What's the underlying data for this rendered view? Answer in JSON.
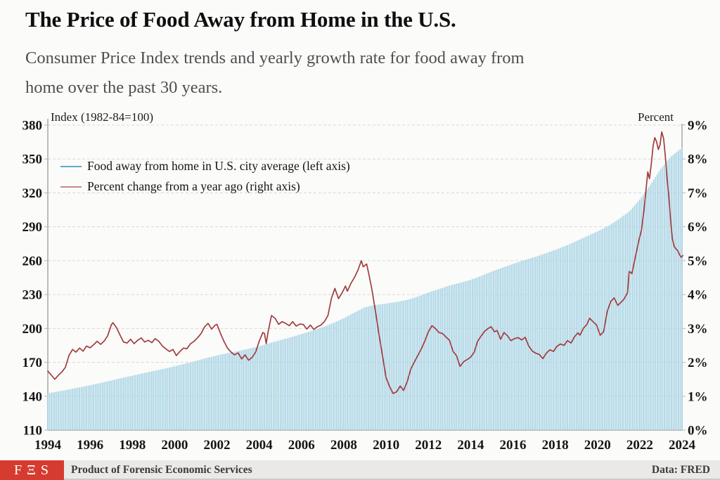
{
  "header": {
    "title": "The Price of Food Away from Home in the U.S.",
    "subtitle_line1": "Consumer Price Index trends and yearly growth rate for food away from",
    "subtitle_line2": "home over the past 30 years."
  },
  "chart_data": {
    "type": "combo",
    "grid": "dashed horizontal gridlines at every tick",
    "legend_position": "top-left inside plot",
    "x_axis": {
      "min": 1994,
      "max": 2024,
      "tick_step": 2,
      "ticks": [
        1994,
        1996,
        1998,
        2000,
        2002,
        2004,
        2006,
        2008,
        2010,
        2012,
        2014,
        2016,
        2018,
        2020,
        2022,
        2024
      ]
    },
    "left_axis": {
      "label": "Index (1982-84=100)",
      "min": 110,
      "max": 380,
      "tick_step": 30,
      "ticks": [
        110,
        140,
        170,
        200,
        230,
        260,
        290,
        320,
        350,
        380
      ]
    },
    "right_axis": {
      "label": "Percent",
      "min": 0,
      "max": 9,
      "tick_step": 1,
      "ticks": [
        "0%",
        "1%",
        "2%",
        "3%",
        "4%",
        "5%",
        "6%",
        "7%",
        "8%",
        "9%"
      ]
    },
    "series": [
      {
        "name": "Food away from home in U.S. city average (left axis)",
        "type": "bar",
        "axis": "left",
        "frequency": "monthly",
        "color": "#a9d4e5",
        "legend_color": "#63a8c8",
        "points": [
          [
            1994.0,
            142.6
          ],
          [
            1994.5,
            144.2
          ],
          [
            1995.0,
            146.0
          ],
          [
            1995.5,
            147.9
          ],
          [
            1996.0,
            149.7
          ],
          [
            1996.5,
            151.8
          ],
          [
            1997.0,
            153.9
          ],
          [
            1997.5,
            156.1
          ],
          [
            1998.0,
            158.2
          ],
          [
            1998.5,
            160.3
          ],
          [
            1999.0,
            162.3
          ],
          [
            1999.5,
            164.3
          ],
          [
            2000.0,
            166.5
          ],
          [
            2000.5,
            168.8
          ],
          [
            2001.0,
            171.2
          ],
          [
            2001.5,
            173.8
          ],
          [
            2002.0,
            176.1
          ],
          [
            2002.5,
            178.1
          ],
          [
            2003.0,
            180.0
          ],
          [
            2003.5,
            182.0
          ],
          [
            2004.0,
            184.2
          ],
          [
            2004.5,
            187.0
          ],
          [
            2005.0,
            189.6
          ],
          [
            2005.5,
            192.2
          ],
          [
            2006.0,
            195.0
          ],
          [
            2006.5,
            197.9
          ],
          [
            2007.0,
            201.1
          ],
          [
            2007.5,
            204.8
          ],
          [
            2008.0,
            209.0
          ],
          [
            2008.5,
            214.0
          ],
          [
            2009.0,
            218.8
          ],
          [
            2009.5,
            220.8
          ],
          [
            2010.0,
            222.0
          ],
          [
            2010.5,
            223.4
          ],
          [
            2011.0,
            225.2
          ],
          [
            2011.5,
            228.2
          ],
          [
            2012.0,
            231.7
          ],
          [
            2012.5,
            234.9
          ],
          [
            2013.0,
            238.0
          ],
          [
            2013.5,
            240.4
          ],
          [
            2014.0,
            243.0
          ],
          [
            2014.5,
            246.5
          ],
          [
            2015.0,
            250.4
          ],
          [
            2015.5,
            253.8
          ],
          [
            2016.0,
            257.1
          ],
          [
            2016.5,
            260.2
          ],
          [
            2017.0,
            263.0
          ],
          [
            2017.5,
            266.2
          ],
          [
            2018.0,
            269.5
          ],
          [
            2018.5,
            273.2
          ],
          [
            2019.0,
            277.3
          ],
          [
            2019.5,
            281.6
          ],
          [
            2020.0,
            285.9
          ],
          [
            2020.5,
            290.5
          ],
          [
            2021.0,
            296.6
          ],
          [
            2021.5,
            303.5
          ],
          [
            2022.0,
            314.1
          ],
          [
            2022.5,
            327.0
          ],
          [
            2023.0,
            341.4
          ],
          [
            2023.5,
            352.5
          ],
          [
            2024.0,
            360.0
          ],
          [
            2024.04,
            360.5
          ]
        ]
      },
      {
        "name": "Percent change from a year ago (right axis)",
        "type": "line",
        "axis": "right",
        "frequency": "monthly",
        "color": "#a23c3e",
        "legend_color": "#c58b8b",
        "points": [
          [
            1994.0,
            1.74
          ],
          [
            1994.17,
            1.62
          ],
          [
            1994.33,
            1.5
          ],
          [
            1994.5,
            1.62
          ],
          [
            1994.67,
            1.72
          ],
          [
            1994.83,
            1.85
          ],
          [
            1995.0,
            2.2
          ],
          [
            1995.17,
            2.38
          ],
          [
            1995.33,
            2.3
          ],
          [
            1995.5,
            2.42
          ],
          [
            1995.67,
            2.33
          ],
          [
            1995.83,
            2.48
          ],
          [
            1996.0,
            2.43
          ],
          [
            1996.17,
            2.52
          ],
          [
            1996.33,
            2.62
          ],
          [
            1996.5,
            2.53
          ],
          [
            1996.67,
            2.63
          ],
          [
            1996.83,
            2.78
          ],
          [
            1997.0,
            3.1
          ],
          [
            1997.08,
            3.17
          ],
          [
            1997.25,
            3.02
          ],
          [
            1997.42,
            2.8
          ],
          [
            1997.58,
            2.6
          ],
          [
            1997.75,
            2.57
          ],
          [
            1997.92,
            2.68
          ],
          [
            1998.08,
            2.55
          ],
          [
            1998.25,
            2.65
          ],
          [
            1998.42,
            2.72
          ],
          [
            1998.58,
            2.6
          ],
          [
            1998.75,
            2.65
          ],
          [
            1998.92,
            2.58
          ],
          [
            1999.08,
            2.7
          ],
          [
            1999.25,
            2.62
          ],
          [
            1999.42,
            2.48
          ],
          [
            1999.58,
            2.4
          ],
          [
            1999.75,
            2.32
          ],
          [
            1999.92,
            2.38
          ],
          [
            2000.08,
            2.2
          ],
          [
            2000.25,
            2.32
          ],
          [
            2000.42,
            2.42
          ],
          [
            2000.58,
            2.4
          ],
          [
            2000.75,
            2.55
          ],
          [
            2000.92,
            2.62
          ],
          [
            2001.08,
            2.72
          ],
          [
            2001.25,
            2.85
          ],
          [
            2001.42,
            3.05
          ],
          [
            2001.58,
            3.15
          ],
          [
            2001.75,
            2.98
          ],
          [
            2001.92,
            3.1
          ],
          [
            2002.0,
            3.12
          ],
          [
            2002.17,
            2.85
          ],
          [
            2002.33,
            2.62
          ],
          [
            2002.5,
            2.42
          ],
          [
            2002.67,
            2.3
          ],
          [
            2002.83,
            2.22
          ],
          [
            2003.0,
            2.28
          ],
          [
            2003.17,
            2.1
          ],
          [
            2003.33,
            2.22
          ],
          [
            2003.5,
            2.06
          ],
          [
            2003.67,
            2.15
          ],
          [
            2003.83,
            2.3
          ],
          [
            2004.0,
            2.62
          ],
          [
            2004.17,
            2.88
          ],
          [
            2004.25,
            2.85
          ],
          [
            2004.33,
            2.55
          ],
          [
            2004.42,
            2.9
          ],
          [
            2004.58,
            3.38
          ],
          [
            2004.75,
            3.3
          ],
          [
            2004.92,
            3.12
          ],
          [
            2005.08,
            3.2
          ],
          [
            2005.25,
            3.15
          ],
          [
            2005.42,
            3.08
          ],
          [
            2005.58,
            3.2
          ],
          [
            2005.75,
            3.07
          ],
          [
            2005.92,
            3.13
          ],
          [
            2006.08,
            3.12
          ],
          [
            2006.25,
            2.98
          ],
          [
            2006.42,
            3.1
          ],
          [
            2006.58,
            2.97
          ],
          [
            2006.75,
            3.05
          ],
          [
            2006.92,
            3.1
          ],
          [
            2007.08,
            3.2
          ],
          [
            2007.25,
            3.38
          ],
          [
            2007.42,
            3.9
          ],
          [
            2007.58,
            4.18
          ],
          [
            2007.75,
            3.88
          ],
          [
            2007.92,
            4.05
          ],
          [
            2008.08,
            4.25
          ],
          [
            2008.17,
            4.1
          ],
          [
            2008.33,
            4.32
          ],
          [
            2008.5,
            4.5
          ],
          [
            2008.67,
            4.72
          ],
          [
            2008.83,
            5.0
          ],
          [
            2008.92,
            4.82
          ],
          [
            2009.08,
            4.9
          ],
          [
            2009.17,
            4.65
          ],
          [
            2009.33,
            4.15
          ],
          [
            2009.5,
            3.5
          ],
          [
            2009.67,
            2.8
          ],
          [
            2009.83,
            2.2
          ],
          [
            2010.0,
            1.55
          ],
          [
            2010.17,
            1.28
          ],
          [
            2010.33,
            1.08
          ],
          [
            2010.5,
            1.13
          ],
          [
            2010.67,
            1.3
          ],
          [
            2010.83,
            1.17
          ],
          [
            2011.0,
            1.43
          ],
          [
            2011.17,
            1.8
          ],
          [
            2011.33,
            2.0
          ],
          [
            2011.5,
            2.2
          ],
          [
            2011.67,
            2.4
          ],
          [
            2011.83,
            2.62
          ],
          [
            2012.0,
            2.9
          ],
          [
            2012.17,
            3.08
          ],
          [
            2012.33,
            3.0
          ],
          [
            2012.5,
            2.88
          ],
          [
            2012.67,
            2.85
          ],
          [
            2012.83,
            2.75
          ],
          [
            2013.0,
            2.65
          ],
          [
            2013.17,
            2.32
          ],
          [
            2013.33,
            2.2
          ],
          [
            2013.5,
            1.88
          ],
          [
            2013.67,
            2.02
          ],
          [
            2013.83,
            2.08
          ],
          [
            2014.0,
            2.15
          ],
          [
            2014.17,
            2.3
          ],
          [
            2014.33,
            2.62
          ],
          [
            2014.5,
            2.78
          ],
          [
            2014.67,
            2.92
          ],
          [
            2014.83,
            3.0
          ],
          [
            2014.97,
            3.05
          ],
          [
            2015.13,
            2.9
          ],
          [
            2015.25,
            2.94
          ],
          [
            2015.42,
            2.68
          ],
          [
            2015.58,
            2.88
          ],
          [
            2015.75,
            2.78
          ],
          [
            2015.9,
            2.64
          ],
          [
            2016.08,
            2.7
          ],
          [
            2016.25,
            2.73
          ],
          [
            2016.42,
            2.66
          ],
          [
            2016.58,
            2.74
          ],
          [
            2016.75,
            2.48
          ],
          [
            2016.92,
            2.33
          ],
          [
            2017.08,
            2.27
          ],
          [
            2017.25,
            2.23
          ],
          [
            2017.42,
            2.11
          ],
          [
            2017.58,
            2.27
          ],
          [
            2017.75,
            2.37
          ],
          [
            2017.92,
            2.32
          ],
          [
            2018.08,
            2.47
          ],
          [
            2018.25,
            2.54
          ],
          [
            2018.42,
            2.5
          ],
          [
            2018.58,
            2.64
          ],
          [
            2018.75,
            2.57
          ],
          [
            2018.92,
            2.76
          ],
          [
            2019.08,
            2.87
          ],
          [
            2019.17,
            2.8
          ],
          [
            2019.33,
            3.0
          ],
          [
            2019.5,
            3.12
          ],
          [
            2019.63,
            3.3
          ],
          [
            2019.79,
            3.2
          ],
          [
            2019.96,
            3.1
          ],
          [
            2020.13,
            2.8
          ],
          [
            2020.29,
            2.9
          ],
          [
            2020.46,
            3.5
          ],
          [
            2020.63,
            3.8
          ],
          [
            2020.79,
            3.9
          ],
          [
            2020.96,
            3.68
          ],
          [
            2021.08,
            3.75
          ],
          [
            2021.25,
            3.86
          ],
          [
            2021.42,
            4.05
          ],
          [
            2021.5,
            4.68
          ],
          [
            2021.63,
            4.62
          ],
          [
            2021.79,
            5.1
          ],
          [
            2021.96,
            5.6
          ],
          [
            2022.08,
            5.9
          ],
          [
            2022.21,
            6.55
          ],
          [
            2022.29,
            7.05
          ],
          [
            2022.38,
            7.62
          ],
          [
            2022.46,
            7.42
          ],
          [
            2022.54,
            7.82
          ],
          [
            2022.63,
            8.38
          ],
          [
            2022.71,
            8.63
          ],
          [
            2022.79,
            8.52
          ],
          [
            2022.88,
            8.28
          ],
          [
            2022.96,
            8.42
          ],
          [
            2023.04,
            8.8
          ],
          [
            2023.13,
            8.6
          ],
          [
            2023.21,
            8.08
          ],
          [
            2023.29,
            7.45
          ],
          [
            2023.38,
            6.85
          ],
          [
            2023.46,
            6.2
          ],
          [
            2023.54,
            5.65
          ],
          [
            2023.63,
            5.42
          ],
          [
            2023.71,
            5.35
          ],
          [
            2023.79,
            5.3
          ],
          [
            2023.88,
            5.18
          ],
          [
            2023.96,
            5.1
          ],
          [
            2024.04,
            5.15
          ]
        ]
      }
    ]
  },
  "footer": {
    "logo_text": "FΞS",
    "product_text": "Product of Forensic Economic Services",
    "data_source": "Data: FRED"
  }
}
